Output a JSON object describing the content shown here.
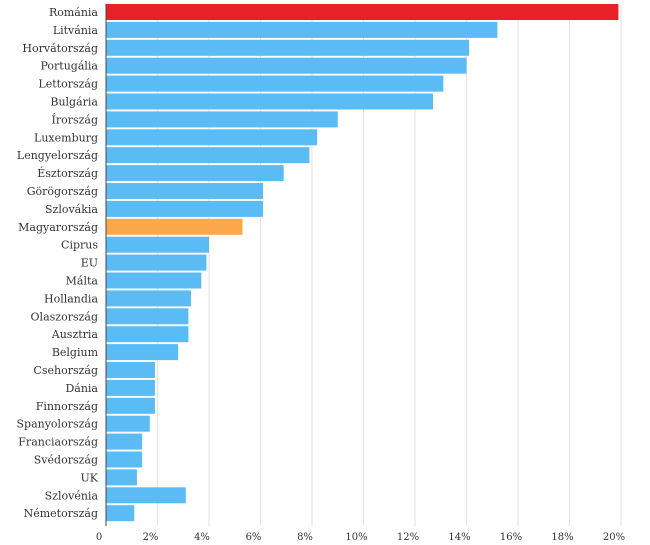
{
  "chart_data": {
    "type": "bar",
    "orientation": "horizontal",
    "categories": [
      "Románia",
      "Litvánia",
      "Horvátország",
      "Portugália",
      "Lettország",
      "Bulgária",
      "Írország",
      "Luxemburg",
      "Lengyelország",
      "Észtország",
      "Görögország",
      "Szlovákia",
      "Magyarország",
      "Ciprus",
      "EU",
      "Málta",
      "Hollandia",
      "Olaszország",
      "Ausztria",
      "Belgium",
      "Csehország",
      "Dánia",
      "Finnország",
      "Spanyolország",
      "Franciaország",
      "Svédország",
      "UK",
      "Szlovénia",
      "Németország"
    ],
    "values": [
      19.9,
      15.2,
      14.1,
      14.0,
      13.1,
      12.7,
      9.0,
      8.2,
      7.9,
      6.9,
      6.1,
      6.1,
      5.3,
      4.0,
      3.9,
      3.7,
      3.3,
      3.2,
      3.2,
      2.8,
      1.9,
      1.9,
      1.9,
      1.7,
      1.4,
      1.4,
      1.2,
      3.1,
      1.1
    ],
    "colors": {
      "default": "#5bbcf5",
      "highlight": {
        "Románia": "#e8202a",
        "Magyarország": "#fba84a"
      }
    },
    "xlim": [
      0,
      20
    ],
    "xticks": [
      0,
      2,
      4,
      6,
      8,
      10,
      12,
      14,
      16,
      18,
      20
    ],
    "xtick_labels": [
      "0",
      "2%",
      "4%",
      "6%",
      "8%",
      "10%",
      "12%",
      "14%",
      "16%",
      "18%",
      "20%"
    ],
    "grid": true,
    "title": "",
    "xlabel": "",
    "ylabel": ""
  }
}
